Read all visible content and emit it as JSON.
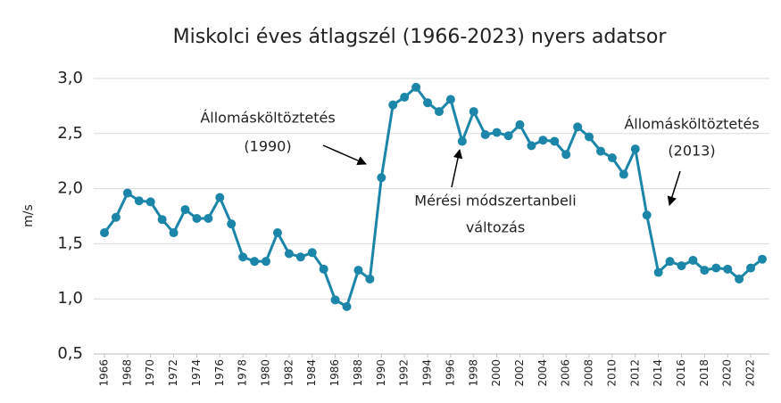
{
  "chart_data": {
    "type": "line",
    "title": "Miskolci éves átlagszél (1966-2023) nyers adatsor",
    "y_label": "m/s",
    "x": [
      1966,
      1967,
      1968,
      1969,
      1970,
      1971,
      1972,
      1973,
      1974,
      1975,
      1976,
      1977,
      1978,
      1979,
      1980,
      1981,
      1982,
      1983,
      1984,
      1985,
      1986,
      1987,
      1988,
      1989,
      1990,
      1991,
      1992,
      1993,
      1994,
      1995,
      1996,
      1997,
      1998,
      1999,
      2000,
      2001,
      2002,
      2003,
      2004,
      2005,
      2006,
      2007,
      2008,
      2009,
      2010,
      2011,
      2012,
      2013,
      2014,
      2015,
      2016,
      2017,
      2018,
      2019,
      2020,
      2021,
      2022,
      2023
    ],
    "series": [
      {
        "color": "#1b86a8",
        "values": [
          1.6,
          1.74,
          1.96,
          1.89,
          1.88,
          1.72,
          1.6,
          1.81,
          1.73,
          1.73,
          1.92,
          1.68,
          1.38,
          1.34,
          1.34,
          1.6,
          1.41,
          1.38,
          1.42,
          1.27,
          0.99,
          0.93,
          1.26,
          1.18,
          2.1,
          2.76,
          2.83,
          2.92,
          2.78,
          2.7,
          2.81,
          2.43,
          2.7,
          2.49,
          2.51,
          2.48,
          2.58,
          2.39,
          2.44,
          2.43,
          2.31,
          2.56,
          2.47,
          2.34,
          2.28,
          2.13,
          2.36,
          1.76,
          1.24,
          1.34,
          1.3,
          1.35,
          1.26,
          1.28,
          1.27,
          1.18,
          1.28,
          1.36
        ]
      }
    ],
    "xlim": [
      1966,
      2023
    ],
    "xticks": [
      1966,
      1968,
      1970,
      1972,
      1974,
      1976,
      1978,
      1980,
      1982,
      1984,
      1986,
      1988,
      1990,
      1992,
      1994,
      1996,
      1998,
      2000,
      2002,
      2004,
      2006,
      2008,
      2010,
      2012,
      2014,
      2016,
      2018,
      2020,
      2022
    ],
    "ylim": [
      0.5,
      3.0
    ],
    "yticks": [
      {
        "value": 0.5,
        "label": "0,5"
      },
      {
        "value": 1.0,
        "label": "1,0"
      },
      {
        "value": 1.5,
        "label": "1,5"
      },
      {
        "value": 2.0,
        "label": "2,0"
      },
      {
        "value": 2.5,
        "label": "2,5"
      },
      {
        "value": 3.0,
        "label": "3,0"
      }
    ],
    "grid": true,
    "annotations": [
      [
        "Állomásköltöztetés",
        "(1990)"
      ],
      [
        "Mérési módszertanbeli",
        "változás"
      ],
      [
        "Állomásköltöztetés",
        "(2013)"
      ]
    ]
  }
}
